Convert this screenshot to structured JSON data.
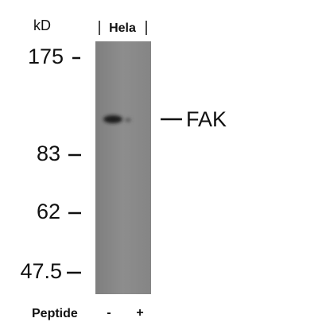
{
  "header": {
    "unit": "kD",
    "lane_label": "Hela"
  },
  "markers": [
    "175",
    "83",
    "62",
    "47.5"
  ],
  "band_label": "FAK",
  "footer": {
    "label": "Peptide",
    "lanes": [
      "-",
      "+"
    ]
  }
}
